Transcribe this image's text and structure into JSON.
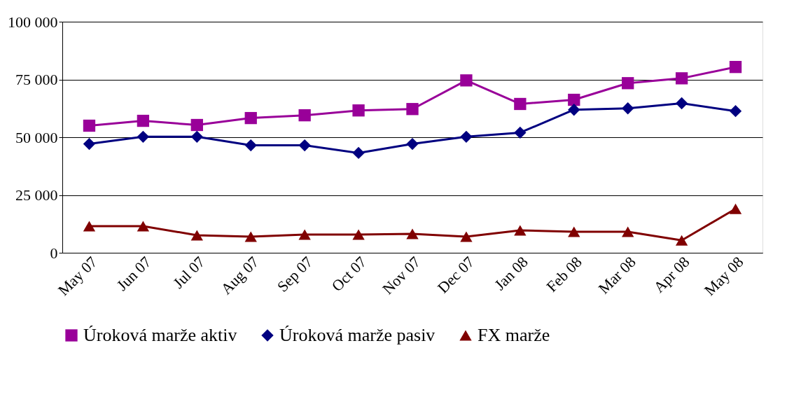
{
  "chart_data": {
    "type": "line",
    "categories": [
      "May 07",
      "Jun 07",
      "Jul 07",
      "Aug 07",
      "Sep 07",
      "Oct 07",
      "Nov 07",
      "Dec 07",
      "Jan 08",
      "Feb 08",
      "Mar 08",
      "Apr 08",
      "May 08"
    ],
    "series": [
      {
        "name": "Úroková marže aktiv",
        "color": "#990099",
        "marker": "square",
        "values": [
          55000,
          57100,
          55300,
          58300,
          59500,
          61600,
          62200,
          74600,
          64400,
          66200,
          73400,
          75500,
          80400
        ]
      },
      {
        "name": "Úroková marže pasiv",
        "color": "#000080",
        "marker": "diamond",
        "values": [
          47100,
          50200,
          50200,
          46500,
          46500,
          43200,
          47100,
          50200,
          52000,
          61900,
          62500,
          64700,
          61300
        ]
      },
      {
        "name": "FX marže",
        "color": "#800000",
        "marker": "triangle",
        "values": [
          11500,
          11500,
          7600,
          7000,
          7900,
          7900,
          8200,
          7000,
          9700,
          9100,
          9100,
          5400,
          19000
        ]
      }
    ],
    "ylim": [
      0,
      100000
    ],
    "yticks": [
      {
        "value": 0,
        "label": "0"
      },
      {
        "value": 25000,
        "label": "25 000"
      },
      {
        "value": 50000,
        "label": "50 000"
      },
      {
        "value": 75000,
        "label": "75 000"
      },
      {
        "value": 100000,
        "label": "100 000"
      }
    ],
    "grid": "y",
    "legend": "bottom",
    "line_style": "solid"
  }
}
